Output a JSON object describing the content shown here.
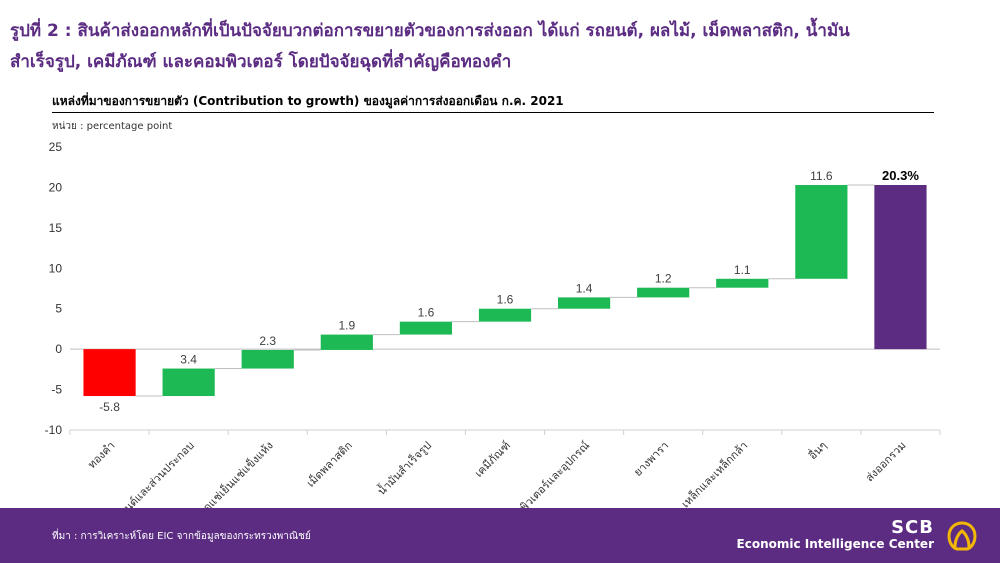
{
  "headline": {
    "line1": "รูปที่ 2 : สินค้าส่งออกหลักที่เป็นปัจจัยบวกต่อการขยายตัวของการส่งออก ได้แก่ รถยนต์, ผลไม้, เม็ดพลาสติก, น้ำมัน",
    "line2": "สำเร็จรูป, เคมีภัณฑ์ และคอมพิวเตอร์ โดยปัจจัยฉุดที่สำคัญคือทองคำ"
  },
  "subtitle": "แหล่งที่มาของการขยายตัว (Contribution to growth) ของมูลค่าการส่งออกเดือน ก.ค. 2021",
  "unit": "หน่วย : percentage point",
  "footer": {
    "source": "ที่มา : การวิเคราะห์โดย EIC จากข้อมูลของกระทรวงพาณิชย์",
    "brand": "SCB",
    "brand_sub": "Economic Intelligence Center"
  },
  "colors": {
    "accent": "#5b2c82",
    "negative": "#ff0000",
    "positive": "#1db954",
    "total": "#5b2c82"
  },
  "chart_data": {
    "type": "bar",
    "subtype": "waterfall",
    "categories": [
      "ทองคำ",
      "รถยนต์และส่วนประกอบ",
      "ผลไม้สดแช่เย็นแช่แข็งแห้ง",
      "เม็ดพลาสติก",
      "น้ำมันสำเร็จรูป",
      "เคมีภัณฑ์",
      "คอมพิวเตอร์และอุปกรณ์",
      "ยางพารา",
      "เหล็กและเหล็กกล้า",
      "อื่นๆ",
      "ส่งออกรวม"
    ],
    "values": [
      -5.8,
      3.4,
      2.3,
      1.9,
      1.6,
      1.6,
      1.4,
      1.2,
      1.1,
      11.6,
      20.3
    ],
    "data_labels": [
      "-5.8",
      "3.4",
      "2.3",
      "1.9",
      "1.6",
      "1.6",
      "1.4",
      "1.2",
      "1.1",
      "11.6",
      "20.3%"
    ],
    "total_index": 10,
    "yticks": [
      "25",
      "20",
      "15",
      "10",
      "5",
      "0",
      "-5",
      "-10"
    ],
    "ylim": [
      -10,
      25
    ],
    "grid": false
  }
}
